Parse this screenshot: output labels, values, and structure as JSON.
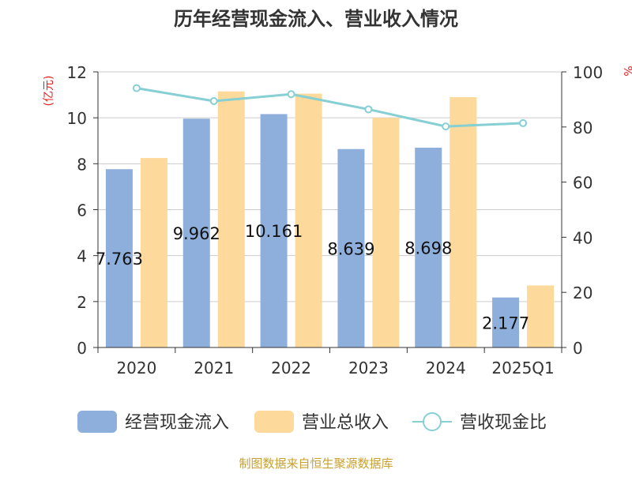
{
  "chart_data": {
    "type": "bar",
    "title": "历年经营现金流入、营业收入情况",
    "categories": [
      "2020",
      "2021",
      "2022",
      "2023",
      "2024",
      "2025Q1"
    ],
    "series": [
      {
        "name": "经营现金流入",
        "kind": "bar",
        "axis": "left",
        "color": "#8eaedb",
        "values": [
          7.763,
          9.962,
          10.161,
          8.639,
          8.698,
          2.177
        ]
      },
      {
        "name": "营业总收入",
        "kind": "bar",
        "axis": "left",
        "color": "#fdd99b",
        "values": [
          8.25,
          11.15,
          11.05,
          10.0,
          10.9,
          2.7
        ]
      },
      {
        "name": "营收现金比",
        "kind": "line",
        "axis": "right",
        "color": "#86cfd3",
        "values": [
          94.1,
          89.4,
          91.9,
          86.4,
          80.2,
          81.4
        ]
      }
    ],
    "data_labels": [
      "7.763",
      "9.962",
      "10.161",
      "8.639",
      "8.698",
      "2.177"
    ],
    "y_left": {
      "unit": "(亿元)",
      "ylim": [
        0,
        12
      ],
      "ticks": [
        0,
        2,
        4,
        6,
        8,
        10,
        12
      ]
    },
    "y_right": {
      "unit": "%",
      "ylim": [
        0,
        100
      ],
      "ticks": [
        0,
        20,
        40,
        60,
        80,
        100
      ]
    },
    "grid": true,
    "legend": "bottom",
    "source": "制图数据来自恒生聚源数据库",
    "colors": {
      "unit_label": "#e02020",
      "source": "#c8a030",
      "title": "#333333"
    }
  }
}
